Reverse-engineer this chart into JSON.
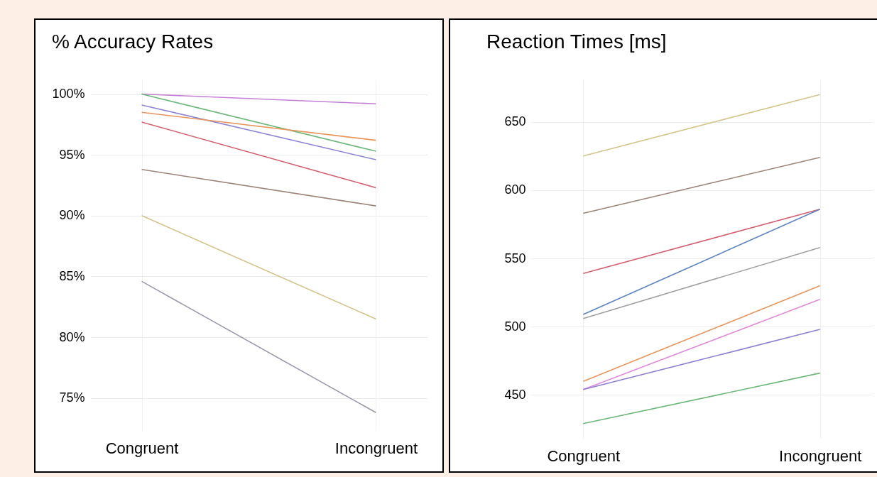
{
  "chart_data": [
    {
      "type": "line",
      "title": "% Accuracy Rates",
      "categories": [
        "Congruent",
        "Incongruent"
      ],
      "series": [
        {
          "color": "#c47fd4",
          "values": [
            100,
            99.2
          ]
        },
        {
          "color": "#6cb878",
          "values": [
            100,
            95.3
          ]
        },
        {
          "color": "#8c84d4",
          "values": [
            99.1,
            94.6
          ]
        },
        {
          "color": "#e8955c",
          "values": [
            98.5,
            96.2
          ]
        },
        {
          "color": "#d65f6f",
          "values": [
            97.7,
            92.3
          ]
        },
        {
          "color": "#9c8478",
          "values": [
            93.8,
            90.8
          ]
        },
        {
          "color": "#d4c48a",
          "values": [
            90,
            81.5
          ]
        },
        {
          "color": "#9a9aae",
          "values": [
            84.6,
            73.8
          ]
        }
      ],
      "ylim": [
        72.3,
        101.2
      ],
      "yticks": [
        {
          "value": 75,
          "label": "75%"
        },
        {
          "value": 80,
          "label": "80%"
        },
        {
          "value": 85,
          "label": "85%"
        },
        {
          "value": 90,
          "label": "90%"
        },
        {
          "value": 95,
          "label": "95%"
        },
        {
          "value": 100,
          "label": "100%"
        }
      ],
      "grid": true,
      "line_style": "solid"
    },
    {
      "type": "line",
      "title": "Reaction Times [ms]",
      "categories": [
        "Congruent",
        "Incongruent"
      ],
      "series": [
        {
          "color": "#d4c48a",
          "values": [
            625,
            670
          ]
        },
        {
          "color": "#9c8478",
          "values": [
            583,
            624
          ]
        },
        {
          "color": "#d65f6f",
          "values": [
            539,
            586
          ]
        },
        {
          "color": "#5b84c4",
          "values": [
            509,
            586
          ]
        },
        {
          "color": "#a0a0a0",
          "values": [
            506,
            558
          ]
        },
        {
          "color": "#e8955c",
          "values": [
            460,
            530
          ]
        },
        {
          "color": "#e08ad8",
          "values": [
            454,
            520
          ]
        },
        {
          "color": "#8c7fd0",
          "values": [
            454,
            498
          ]
        },
        {
          "color": "#6cb878",
          "values": [
            429,
            466
          ]
        }
      ],
      "ylim": [
        418,
        681
      ],
      "yticks": [
        450,
        500,
        550,
        600,
        650
      ],
      "grid": true,
      "line_style": "solid"
    }
  ]
}
